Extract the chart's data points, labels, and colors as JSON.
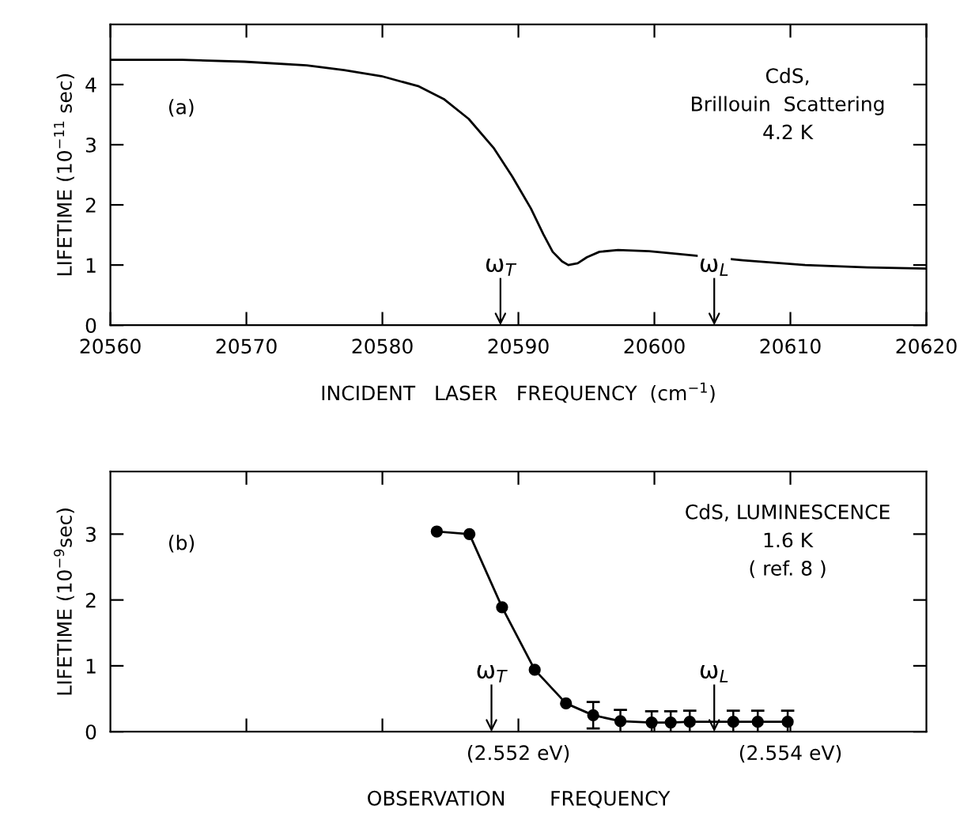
{
  "chart_data": [
    {
      "type": "line",
      "xlabel": "INCIDENT   LASER   FREQUENCY  (cm$^{−1}$)",
      "ylabel": "LIFETIME (10$^{−11}$ sec)",
      "annotations": [
        "(a)",
        "CdS,\nBrillouin  Scattering\n4.2 K",
        "ω$_{T}$",
        "ω$_{L}$"
      ],
      "xlim": [
        20560,
        20620
      ],
      "xticks": [
        20560,
        20570,
        20580,
        20590,
        20600,
        20610,
        20620
      ],
      "ylim": [
        0,
        5
      ],
      "yticks": [
        0,
        1,
        2,
        3,
        4
      ],
      "grid": false,
      "legend": false,
      "marker": "none",
      "line_style": "solid",
      "series": [
        {
          "color": "#000000",
          "x": [
            20560,
            20565.27,
            20569.85,
            20574.43,
            20577.18,
            20579.93,
            20582.68,
            20584.51,
            20586.34,
            20588.17,
            20589.55,
            20590.92,
            20591.84,
            20592.52,
            20593.21,
            20593.67,
            20594.36,
            20595.04,
            20595.96,
            20597.33,
            20599.62,
            20601.91,
            20606.5,
            20611.08,
            20615.66,
            20620
          ],
          "values": [
            4.41,
            4.41,
            4.38,
            4.32,
            4.24,
            4.14,
            3.97,
            3.76,
            3.43,
            2.95,
            2.47,
            1.94,
            1.51,
            1.22,
            1.06,
            1.0,
            1.03,
            1.13,
            1.22,
            1.25,
            1.23,
            1.18,
            1.08,
            1.0,
            0.96,
            0.94
          ]
        }
      ]
    },
    {
      "type": "line",
      "xlabel": "OBSERVATION       FREQUENCY",
      "ylabel": "LIFETIME (10$^{−9}$sec)",
      "annotations": [
        "(b)",
        "CdS, LUMINESCENCE\n1.6 K\n( ref. 8 )",
        "ω$_{T}$",
        "ω$_{L}$"
      ],
      "xlim": [
        2.549,
        2.555
      ],
      "xticks": [
        {
          "value": 2.55,
          "label": null
        },
        {
          "value": 2.551,
          "label": null
        },
        {
          "value": 2.552,
          "label": "(2.552 eV)"
        },
        {
          "value": 2.553,
          "label": null
        },
        {
          "value": 2.554,
          "label": "(2.554 eV)"
        }
      ],
      "ylim": [
        0,
        3.95
      ],
      "yticks": [
        0,
        1,
        2,
        3
      ],
      "grid": false,
      "legend": false,
      "marker": "circle",
      "line_style": "solid",
      "series": [
        {
          "color": "#000000",
          "x": [
            2.5514,
            2.55164,
            2.55188,
            2.55212,
            2.55235,
            2.55255,
            2.55275,
            2.55298,
            2.55312,
            2.55326,
            2.55358,
            2.55376,
            2.55398
          ],
          "values": [
            3.04,
            3.0,
            1.89,
            0.94,
            0.43,
            0.25,
            0.16,
            0.14,
            0.14,
            0.15,
            0.15,
            0.15,
            0.15
          ],
          "errors": [
            null,
            null,
            null,
            null,
            null,
            0.2,
            0.17,
            0.17,
            0.17,
            0.17,
            0.17,
            0.17,
            0.17
          ]
        }
      ]
    }
  ]
}
